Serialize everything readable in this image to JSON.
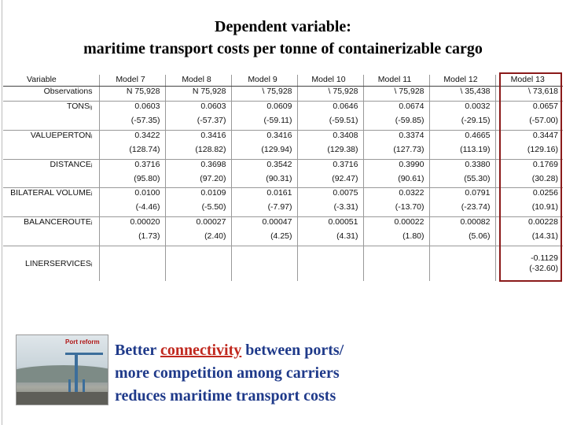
{
  "title": {
    "line1": "Dependent variable:",
    "line2": "maritime transport costs per tonne of containerizable cargo"
  },
  "table": {
    "variable_header": "Variable",
    "models": [
      "Model 7",
      "Model 8",
      "Model 9",
      "Model 10",
      "Model 11",
      "Model 12",
      "Model 13"
    ],
    "observations_label": "Observations",
    "observations": [
      "N 75,928",
      "N 75,928",
      "\\ 75,928",
      "\\ 75,928",
      "\\ 75,928",
      "\\ 35,438",
      "\\ 73,618"
    ],
    "rows": [
      {
        "label": "TONSᵢⱼ",
        "coef": [
          "0.0603",
          "0.0603",
          "0.0609",
          "0.0646",
          "0.0674",
          "0.0032",
          "0.0657"
        ],
        "t": [
          "(-57.35)",
          "(-57.37)",
          "(-59.11)",
          "(-59.51)",
          "(-59.85)",
          "(-29.15)",
          "(-57.00)"
        ]
      },
      {
        "label": "VALUEPERTONᵢ",
        "coef": [
          "0.3422",
          "0.3416",
          "0.3416",
          "0.3408",
          "0.3374",
          "0.4665",
          "0.3447"
        ],
        "t": [
          "(128.74)",
          "(128.82)",
          "(129.94)",
          "(129.38)",
          "(127.73)",
          "(113.19)",
          "(129.16)"
        ]
      },
      {
        "label": "DISTANCEᵢ",
        "coef": [
          "0.3716",
          "0.3698",
          "0.3542",
          "0.3716",
          "0.3990",
          "0.3380",
          "0.1769"
        ],
        "t": [
          "(95.80)",
          "(97.20)",
          "(90.31)",
          "(92.47)",
          "(90.61)",
          "(55.30)",
          "(30.28)"
        ]
      },
      {
        "label": "BILATERAL VOLUMEᵢ",
        "coef": [
          "0.0100",
          "0.0109",
          "0.0161",
          "0.0075",
          "0.0322",
          "0.0791",
          "0.0256"
        ],
        "t": [
          "(-4.46)",
          "(-5.50)",
          "(-7.97)",
          "(-3.31)",
          "(-13.70)",
          "(-23.74)",
          "(10.91)"
        ]
      },
      {
        "label": "BALANCEROUTEᵢ",
        "coef": [
          "0.00020",
          "0.00027",
          "0.00047",
          "0.00051",
          "0.00022",
          "0.00082",
          "0.00228"
        ],
        "t": [
          "(1.73)",
          "(2.40)",
          "(4.25)",
          "(4.31)",
          "(1.80)",
          "(5.06)",
          "(14.31)"
        ]
      }
    ],
    "liner": {
      "label": "LINERSERVICESᵢ",
      "model13_coef": "-0.1129",
      "model13_t": "(-32.60)"
    }
  },
  "photo_caption": "Port reform",
  "message": {
    "line1_pre": "Better ",
    "line1_keyword": "connectivity",
    "line1_post": " between ports/",
    "line2": "more competition among carriers",
    "line3": "reduces maritime transport costs"
  },
  "colors": {
    "message_text": "#1f3a8a",
    "keyword": "#c0281e",
    "highlight_border": "#8b1a1a"
  }
}
